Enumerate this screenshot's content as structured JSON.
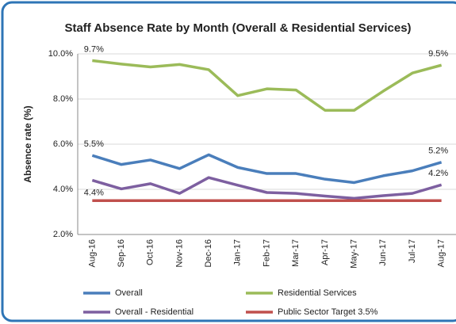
{
  "chart_data": {
    "type": "line",
    "title": "Staff Absence Rate by Month (Overall & Residential Services)",
    "ylabel": "Absence rate (%)",
    "categories": [
      "Aug-16",
      "Sep-16",
      "Oct-16",
      "Nov-16",
      "Dec-16",
      "Jan-17",
      "Feb-17",
      "Mar-17",
      "Apr-17",
      "May-17",
      "Jun-17",
      "Jul-17",
      "Aug-17"
    ],
    "ylim": [
      2,
      10
    ],
    "yticks": [
      {
        "value": 2,
        "label": "2.0%"
      },
      {
        "value": 4,
        "label": "4.0%"
      },
      {
        "value": 6,
        "label": "6.0%"
      },
      {
        "value": 8,
        "label": "8.0%"
      },
      {
        "value": 10,
        "label": "10.0%"
      }
    ],
    "grid": true,
    "series": [
      {
        "name": "Overall",
        "color": "#4a7ebb",
        "values": [
          5.5,
          5.1,
          5.3,
          4.92,
          5.53,
          4.97,
          4.7,
          4.7,
          4.45,
          4.3,
          4.6,
          4.82,
          5.2
        ],
        "value_labels": [
          "5.5%",
          null,
          null,
          null,
          null,
          null,
          null,
          null,
          null,
          null,
          null,
          null,
          "5.2%"
        ]
      },
      {
        "name": "Residential Services",
        "color": "#9bbb59",
        "values": [
          9.7,
          9.55,
          9.42,
          9.53,
          9.3,
          8.15,
          8.45,
          8.4,
          7.5,
          7.5,
          8.35,
          9.15,
          9.5
        ],
        "value_labels": [
          "9.7%",
          null,
          null,
          null,
          null,
          null,
          null,
          null,
          null,
          null,
          null,
          null,
          "9.5%"
        ]
      },
      {
        "name": "Overall - Residential",
        "color": "#7d5fa0",
        "values": [
          4.4,
          4.02,
          4.25,
          3.82,
          4.52,
          4.18,
          3.86,
          3.82,
          3.7,
          3.6,
          3.72,
          3.82,
          4.2
        ],
        "value_labels": [
          "4.4%",
          null,
          null,
          null,
          null,
          null,
          null,
          null,
          null,
          null,
          null,
          null,
          "4.2%"
        ]
      },
      {
        "name": "Public Sector Target 3.5%",
        "color": "#c0504d",
        "values": [
          3.5,
          3.5,
          3.5,
          3.5,
          3.5,
          3.5,
          3.5,
          3.5,
          3.5,
          3.5,
          3.5,
          3.5,
          3.5
        ]
      }
    ]
  }
}
